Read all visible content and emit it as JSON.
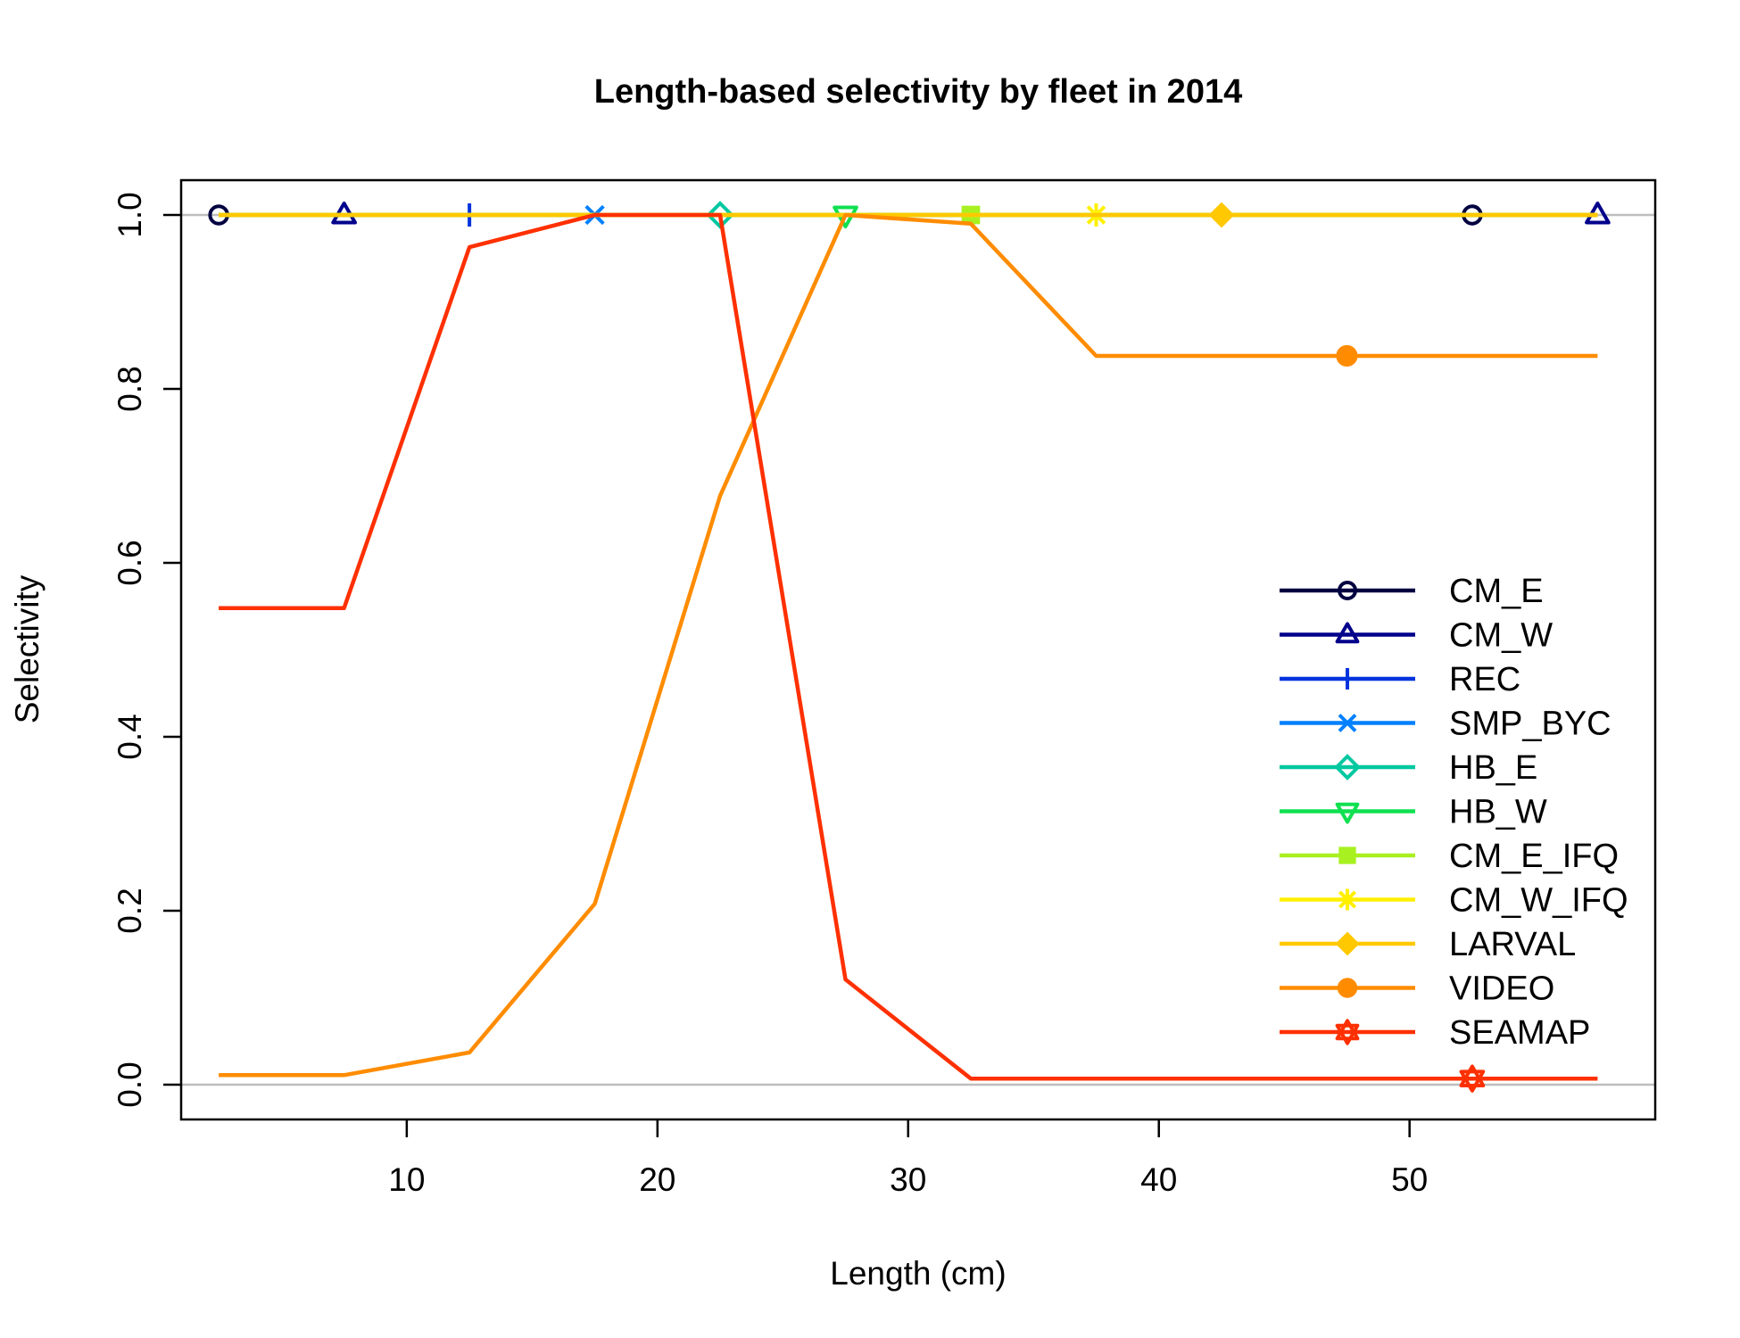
{
  "chart_data": {
    "type": "line",
    "title": "Length-based selectivity by fleet in 2014",
    "xlabel": "Length (cm)",
    "ylabel": "Selectivity",
    "xlim": [
      1,
      59.8
    ],
    "ylim": [
      -0.04,
      1.04
    ],
    "x_ticks": [
      10,
      20,
      30,
      40,
      50
    ],
    "y_ticks": [
      0.0,
      0.2,
      0.4,
      0.6,
      0.8,
      1.0
    ],
    "y_tick_labels": [
      "0.0",
      "0.2",
      "0.4",
      "0.6",
      "0.8",
      "1.0"
    ],
    "reference_lines": [
      0,
      1
    ],
    "grid": false,
    "legend_position": "right",
    "x": [
      2.5,
      7.5,
      12.5,
      17.5,
      22.5,
      27.5,
      32.5,
      37.5,
      42.5,
      47.5,
      52.5,
      57.5
    ],
    "series": [
      {
        "name": "CM_E",
        "color": "#000040",
        "marker": "circle",
        "values": [
          1,
          1,
          1,
          1,
          1,
          1,
          1,
          1,
          1,
          1,
          1,
          1
        ]
      },
      {
        "name": "CM_W",
        "color": "#00008B",
        "marker": "triangle-up",
        "values": [
          1,
          1,
          1,
          1,
          1,
          1,
          1,
          1,
          1,
          1,
          1,
          1
        ]
      },
      {
        "name": "REC",
        "color": "#0033DD",
        "marker": "plus",
        "values": [
          1,
          1,
          1,
          1,
          1,
          1,
          1,
          1,
          1,
          1,
          1,
          1
        ]
      },
      {
        "name": "SMP_BYC",
        "color": "#0080FF",
        "marker": "cross",
        "values": [
          1,
          1,
          1,
          1,
          1,
          1,
          1,
          1,
          1,
          1,
          1,
          1
        ]
      },
      {
        "name": "HB_E",
        "color": "#00C8A0",
        "marker": "diamond",
        "values": [
          1,
          1,
          1,
          1,
          1,
          1,
          1,
          1,
          1,
          1,
          1,
          1
        ]
      },
      {
        "name": "HB_W",
        "color": "#10E050",
        "marker": "triangle-down",
        "values": [
          1,
          1,
          1,
          1,
          1,
          1,
          1,
          1,
          1,
          1,
          1,
          1
        ]
      },
      {
        "name": "CM_E_IFQ",
        "color": "#A8F020",
        "marker": "square",
        "values": [
          1,
          1,
          1,
          1,
          1,
          1,
          1,
          1,
          1,
          1,
          1,
          1
        ]
      },
      {
        "name": "CM_W_IFQ",
        "color": "#FFF000",
        "marker": "asterisk",
        "values": [
          1,
          1,
          1,
          1,
          1,
          1,
          1,
          1,
          1,
          1,
          1,
          1
        ]
      },
      {
        "name": "LARVAL",
        "color": "#FFC800",
        "marker": "diamond-filled",
        "values": [
          1,
          1,
          1,
          1,
          1,
          1,
          1,
          1,
          1,
          1,
          1,
          1
        ]
      },
      {
        "name": "VIDEO",
        "color": "#FF8C00",
        "marker": "circle-filled",
        "values": [
          0.011,
          0.011,
          0.037,
          0.208,
          0.677,
          1.0,
          0.99,
          0.838,
          0.838,
          0.838,
          0.838,
          0.838
        ]
      },
      {
        "name": "SEAMAP",
        "color": "#FF3000",
        "marker": "star-of-david",
        "values": [
          0.548,
          0.548,
          0.963,
          1.0,
          1.0,
          0.121,
          0.007,
          0.007,
          0.007,
          0.007,
          0.007,
          0.007
        ]
      }
    ],
    "marker_offsets": {
      "CM_E": 0,
      "CM_W": 1,
      "REC": 2,
      "SMP_BYC": 3,
      "HB_E": 4,
      "HB_W": 5,
      "CM_E_IFQ": 6,
      "CM_W_IFQ": 7,
      "LARVAL": 8,
      "VIDEO": 9,
      "SEAMAP": 10
    }
  }
}
